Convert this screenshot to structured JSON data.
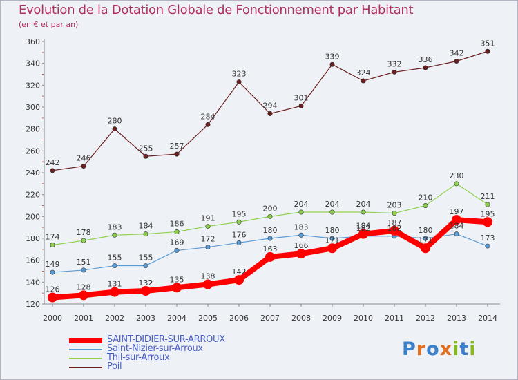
{
  "header": {
    "title": "Evolution de la Dotation Globale de Fonctionnement par Habitant",
    "subtitle": "(en € et par an)"
  },
  "logo": {
    "text": "Proxiti",
    "letter_colors": [
      "#3a7fc8",
      "#e07020",
      "#3a7fc8",
      "#e07020",
      "#88b820",
      "#3a7fc8",
      "#88b820"
    ]
  },
  "chart_data": {
    "type": "line",
    "title": "Evolution de la Dotation Globale de Fonctionnement par Habitant",
    "subtitle": "(en € et par an)",
    "xlabel": "",
    "ylabel": "",
    "x": [
      "2000",
      "2001",
      "2002",
      "2003",
      "2004",
      "2005",
      "2006",
      "2007",
      "2008",
      "2009",
      "2010",
      "2011",
      "2012",
      "2013",
      "2014"
    ],
    "ylim": [
      120,
      360
    ],
    "yticks": [
      120,
      140,
      160,
      180,
      200,
      220,
      240,
      260,
      280,
      300,
      320,
      340,
      360
    ],
    "grid": false,
    "legend_position": "bottom-left",
    "series": [
      {
        "name": "SAINT-DIDIER-SUR-ARROUX",
        "color": "#ff0000",
        "values": [
          126,
          128,
          131,
          132,
          135,
          138,
          142,
          163,
          166,
          171,
          184,
          187,
          171,
          197,
          195
        ],
        "labels": [
          "126",
          "128",
          "131",
          "132",
          "135",
          "138",
          "142",
          "163",
          "166",
          "171",
          "184",
          "187",
          "171",
          "197",
          "195"
        ]
      },
      {
        "name": "Saint-Nizier-sur-Arroux",
        "color": "#5b9bd5",
        "values": [
          149,
          151,
          155,
          155,
          169,
          172,
          176,
          180,
          183,
          180,
          182,
          182,
          180,
          184,
          173
        ],
        "labels": [
          "149",
          "151",
          "155",
          "155",
          "169",
          "172",
          "176",
          "180",
          "183",
          "180",
          "182",
          "182",
          "180",
          "184",
          "173"
        ]
      },
      {
        "name": "Thil-sur-Arroux",
        "color": "#8fd14f",
        "values": [
          174,
          178,
          183,
          184,
          186,
          191,
          195,
          200,
          204,
          204,
          204,
          203,
          210,
          230,
          211
        ],
        "labels": [
          "174",
          "178",
          "183",
          "184",
          "186",
          "191",
          "195",
          "200",
          "204",
          "204",
          "204",
          "203",
          "210",
          "230",
          "211"
        ]
      },
      {
        "name": "Poil",
        "color": "#6b1e1e",
        "values": [
          242,
          246,
          280,
          255,
          257,
          284,
          323,
          294,
          301,
          339,
          324,
          332,
          336,
          342,
          351
        ],
        "labels": [
          "242",
          "246",
          "280",
          "255",
          "257",
          "284",
          "323",
          "294",
          "301",
          "339",
          "324",
          "332",
          "336",
          "342",
          "351"
        ]
      }
    ]
  }
}
